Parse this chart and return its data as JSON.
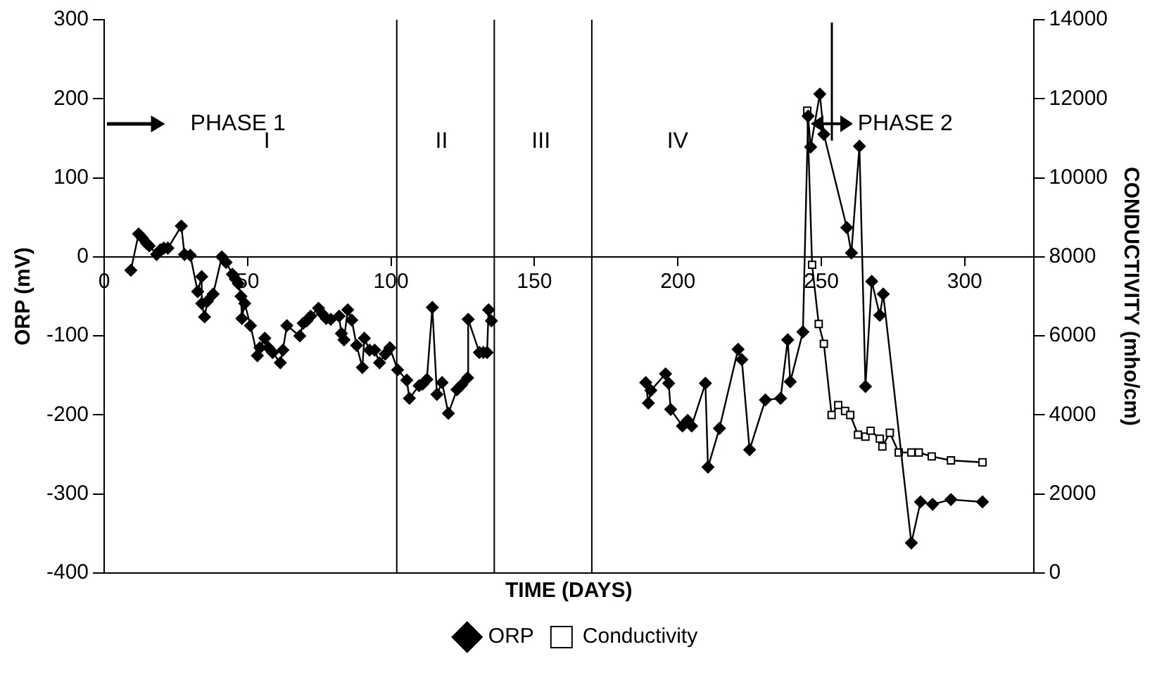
{
  "chart_data": {
    "type": "line",
    "xlabel": "TIME (DAYS)",
    "ylabel": "ORP (mV)",
    "y2label": "CONDUCTIVITY (mho/cm)",
    "xlim": [
      0,
      324
    ],
    "xticks": [
      0,
      50,
      100,
      150,
      200,
      250,
      300
    ],
    "ylim": [
      -400,
      300
    ],
    "yticks": [
      -400,
      -300,
      -200,
      -100,
      0,
      100,
      200,
      300
    ],
    "y2lim": [
      0,
      14000
    ],
    "y2ticks": [
      0,
      2000,
      4000,
      6000,
      8000,
      10000,
      12000,
      14000
    ],
    "grid": false,
    "legend": "bottom",
    "line_style": "solid",
    "series": [
      {
        "name": "ORP",
        "marker": "diamond",
        "color": "#000000",
        "x": [
          9.3,
          12,
          13.3,
          14.8,
          15.7,
          18.3,
          19.6,
          20.8,
          22.2,
          26.9,
          28,
          30,
          32.6,
          34,
          34,
          35,
          36,
          38,
          41,
          42.5,
          44.7,
          45.7,
          46.8,
          47.7,
          48,
          49,
          51,
          53.4,
          54.3,
          56,
          57.3,
          58.7,
          61.4,
          62.3,
          63.7,
          68.2,
          69.4,
          70.6,
          72,
          74.7,
          76,
          77.4,
          79,
          81.9,
          82.7,
          83.6,
          84.9,
          86.3,
          88,
          90,
          90.7,
          92.5,
          94.3,
          96,
          98,
          99.6,
          102.3,
          105.5,
          106.4,
          109.8,
          111,
          112.5,
          114.4,
          116,
          117.8,
          120,
          123,
          124.6,
          126.7,
          126.9,
          130.8,
          132.2,
          133.5,
          134,
          135,
          160,
          188.8,
          189.7,
          190.6,
          195.7,
          196.8,
          197.5,
          201.6,
          203.4,
          204.8,
          209.6,
          210.5,
          214.5,
          221,
          222.3,
          225,
          230.5,
          235.8,
          238.3,
          239.2,
          243.6,
          245.4,
          246.3,
          249.5,
          250.9,
          258.9,
          260.5,
          263.3,
          265.4,
          267.6,
          270.4,
          271.6,
          281.4,
          284.6,
          288.8,
          295.2,
          306.2
        ],
        "values": [
          -17,
          29,
          24,
          17,
          14,
          3,
          9,
          11,
          11,
          39,
          3,
          2,
          -44,
          -25,
          -59,
          -76,
          -56,
          -47,
          0,
          -7,
          -22,
          -28,
          -34,
          -50,
          -78,
          -59,
          -87,
          -125,
          -115,
          -103,
          -115,
          -121,
          -134,
          -118,
          -87,
          -100,
          -84,
          -81,
          -75,
          -65,
          -72,
          -78,
          -79,
          -75,
          -97,
          -105,
          -67,
          -80,
          -112,
          -140,
          -103,
          -118,
          -118,
          -134,
          -123,
          -115,
          -143,
          -156,
          -179,
          -163,
          -161,
          -155,
          -64,
          -174,
          -159,
          -198,
          -168,
          -162,
          -153,
          -79,
          -121,
          -121,
          -121,
          -67,
          -81,
          null,
          -159,
          -185,
          -169,
          -148,
          -160,
          -193,
          -214,
          -207,
          -214,
          -160,
          -266,
          -217,
          -117,
          -130,
          -244,
          -181,
          -179,
          -105,
          -158,
          -95,
          178,
          139,
          206,
          155,
          37,
          5,
          140,
          -164,
          -31,
          -74,
          -47,
          -362,
          -310,
          -313,
          -307,
          -310
        ]
      },
      {
        "name": "Conductivity",
        "marker": "square",
        "color": "#000000",
        "axis": "y2",
        "x": [
          245.1,
          246.8,
          249.1,
          250.9,
          253.6,
          255.9,
          258.3,
          260.1,
          262.8,
          265.4,
          267.2,
          270.4,
          271.3,
          273.9,
          277,
          281.4,
          284,
          288.5,
          295.2,
          306.2
        ],
        "values": [
          11700,
          7800,
          6300,
          5800,
          4000,
          4250,
          4100,
          4000,
          3500,
          3450,
          3600,
          3400,
          3200,
          3550,
          3050,
          3050,
          3050,
          2950,
          2850,
          2800
        ]
      }
    ],
    "ref_lines": [
      {
        "axis": "x",
        "value": 102,
        "color": "#000000",
        "line_style": "solid"
      },
      {
        "axis": "x",
        "value": 136,
        "color": "#000000",
        "line_style": "solid"
      },
      {
        "axis": "x",
        "value": 170,
        "color": "#000000",
        "line_style": "solid"
      }
    ],
    "annotations": [
      "PHASE 1",
      "PHASE 2",
      "I",
      "II",
      "III",
      "IV"
    ]
  }
}
